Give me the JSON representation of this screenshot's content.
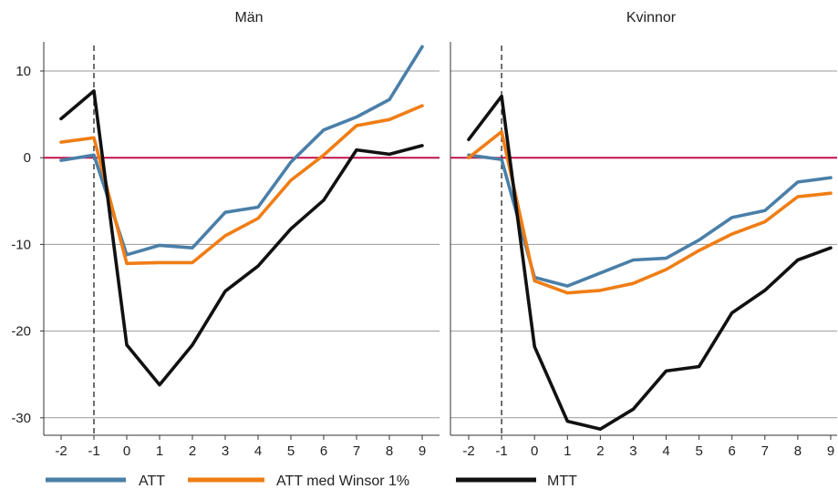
{
  "chart_data": [
    {
      "type": "line",
      "title": "Män",
      "x": [
        -2,
        -1,
        0,
        1,
        2,
        3,
        4,
        5,
        6,
        7,
        8,
        9
      ],
      "xtick_labels": [
        "-2",
        "-1",
        "0",
        "1",
        "2",
        "3",
        "4",
        "5",
        "6",
        "7",
        "8",
        "9"
      ],
      "ylim": [
        -30,
        13
      ],
      "yticks": [
        10,
        0,
        -10,
        -20,
        -30
      ],
      "ytick_labels": [
        "10",
        "0",
        "-10",
        "-20",
        "-30"
      ],
      "grid": true,
      "reference_line_y": 0,
      "vertical_dashed_line_x": -1,
      "series": [
        {
          "name": "ATT",
          "values": [
            -0.3,
            0.3,
            -11.2,
            -10.1,
            -10.4,
            -6.3,
            -5.7,
            -0.5,
            3.2,
            4.7,
            6.7,
            12.8
          ]
        },
        {
          "name": "ATT med Winsor 1%",
          "values": [
            1.8,
            2.3,
            -12.2,
            -12.1,
            -12.1,
            -9.0,
            -7.0,
            -2.6,
            0.3,
            3.7,
            4.4,
            6.0
          ]
        },
        {
          "name": "MTT",
          "values": [
            4.5,
            7.7,
            -21.6,
            -26.2,
            -21.6,
            -15.4,
            -12.5,
            -8.2,
            -4.9,
            0.9,
            0.4,
            1.4
          ]
        }
      ]
    },
    {
      "type": "line",
      "title": "Kvinnor",
      "x": [
        -2,
        -1,
        0,
        1,
        2,
        3,
        4,
        5,
        6,
        7,
        8,
        9
      ],
      "xtick_labels": [
        "-2",
        "-1",
        "0",
        "1",
        "2",
        "3",
        "4",
        "5",
        "6",
        "7",
        "8",
        "9"
      ],
      "ylim": [
        -30,
        13
      ],
      "grid": true,
      "reference_line_y": 0,
      "vertical_dashed_line_x": -1,
      "series": [
        {
          "name": "ATT",
          "values": [
            0.3,
            -0.2,
            -13.8,
            -14.8,
            -13.3,
            -11.8,
            -11.6,
            -9.5,
            -6.9,
            -6.1,
            -2.8,
            -2.3
          ]
        },
        {
          "name": "ATT med Winsor 1%",
          "values": [
            0.0,
            3.0,
            -14.2,
            -15.6,
            -15.3,
            -14.5,
            -12.9,
            -10.7,
            -8.8,
            -7.4,
            -4.5,
            -4.1
          ]
        },
        {
          "name": "MTT",
          "values": [
            2.1,
            7.1,
            -21.8,
            -30.4,
            -31.3,
            -29.0,
            -24.6,
            -24.1,
            -17.9,
            -15.3,
            -11.8,
            -10.4
          ]
        }
      ]
    }
  ],
  "legend": {
    "placement": "bottom",
    "items": [
      {
        "label": "ATT",
        "color": "#4a7fa8"
      },
      {
        "label": "ATT med Winsor 1%",
        "color": "#f07d14"
      },
      {
        "label": "MTT",
        "color": "#111111"
      }
    ]
  },
  "colors": {
    "att": "#4a7fa8",
    "winsor": "#f07d14",
    "mtt": "#111111",
    "zero_line": "#c0124a",
    "grid": "#999999",
    "axis": "#333333"
  }
}
